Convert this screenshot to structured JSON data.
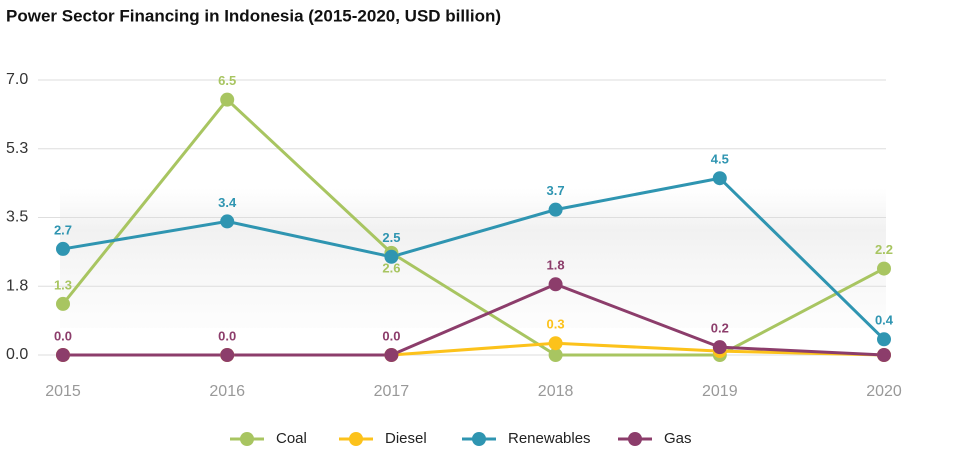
{
  "chart_data": {
    "type": "line",
    "title": "Power Sector Financing in Indonesia (2015-2020, USD billion)",
    "x": [
      2015,
      2016,
      2017,
      2018,
      2019,
      2020
    ],
    "xlim": [
      2015,
      2020
    ],
    "xticks": [
      2015,
      2016,
      2017,
      2018,
      2019,
      2020
    ],
    "ylim": [
      0,
      7
    ],
    "yticks": [
      {
        "value": 0,
        "label": "0.0"
      },
      {
        "value": 1.75,
        "label": "1.8"
      },
      {
        "value": 3.5,
        "label": "3.5"
      },
      {
        "value": 5.25,
        "label": "5.3"
      },
      {
        "value": 7,
        "label": "7.0"
      }
    ],
    "grid": true,
    "legend": "bottom",
    "series": [
      {
        "name": "Coal",
        "color": "#a8c561",
        "values": [
          1.3,
          6.5,
          2.6,
          0,
          0,
          2.2
        ],
        "value_labels": [
          "1.3",
          "6.5",
          "2.6",
          null,
          null,
          "2.2"
        ]
      },
      {
        "name": "Diesel",
        "color": "#fcc21b",
        "values": [
          0,
          0,
          0,
          0.3,
          0.1,
          0
        ],
        "value_labels": [
          null,
          null,
          null,
          "0.3",
          null,
          null
        ]
      },
      {
        "name": "Renewables",
        "color": "#2f95b1",
        "values": [
          2.7,
          3.4,
          2.5,
          3.7,
          4.5,
          0.4
        ],
        "value_labels": [
          "2.7",
          "3.4",
          "2.5",
          "3.7",
          "4.5",
          "0.4"
        ]
      },
      {
        "name": "Gas",
        "color": "#8c3d6b",
        "values": [
          0,
          0,
          0,
          1.8,
          0.2,
          0
        ],
        "value_labels": [
          "0.0",
          "0.0",
          "0.0",
          "1.8",
          "0.2",
          null
        ]
      }
    ]
  }
}
